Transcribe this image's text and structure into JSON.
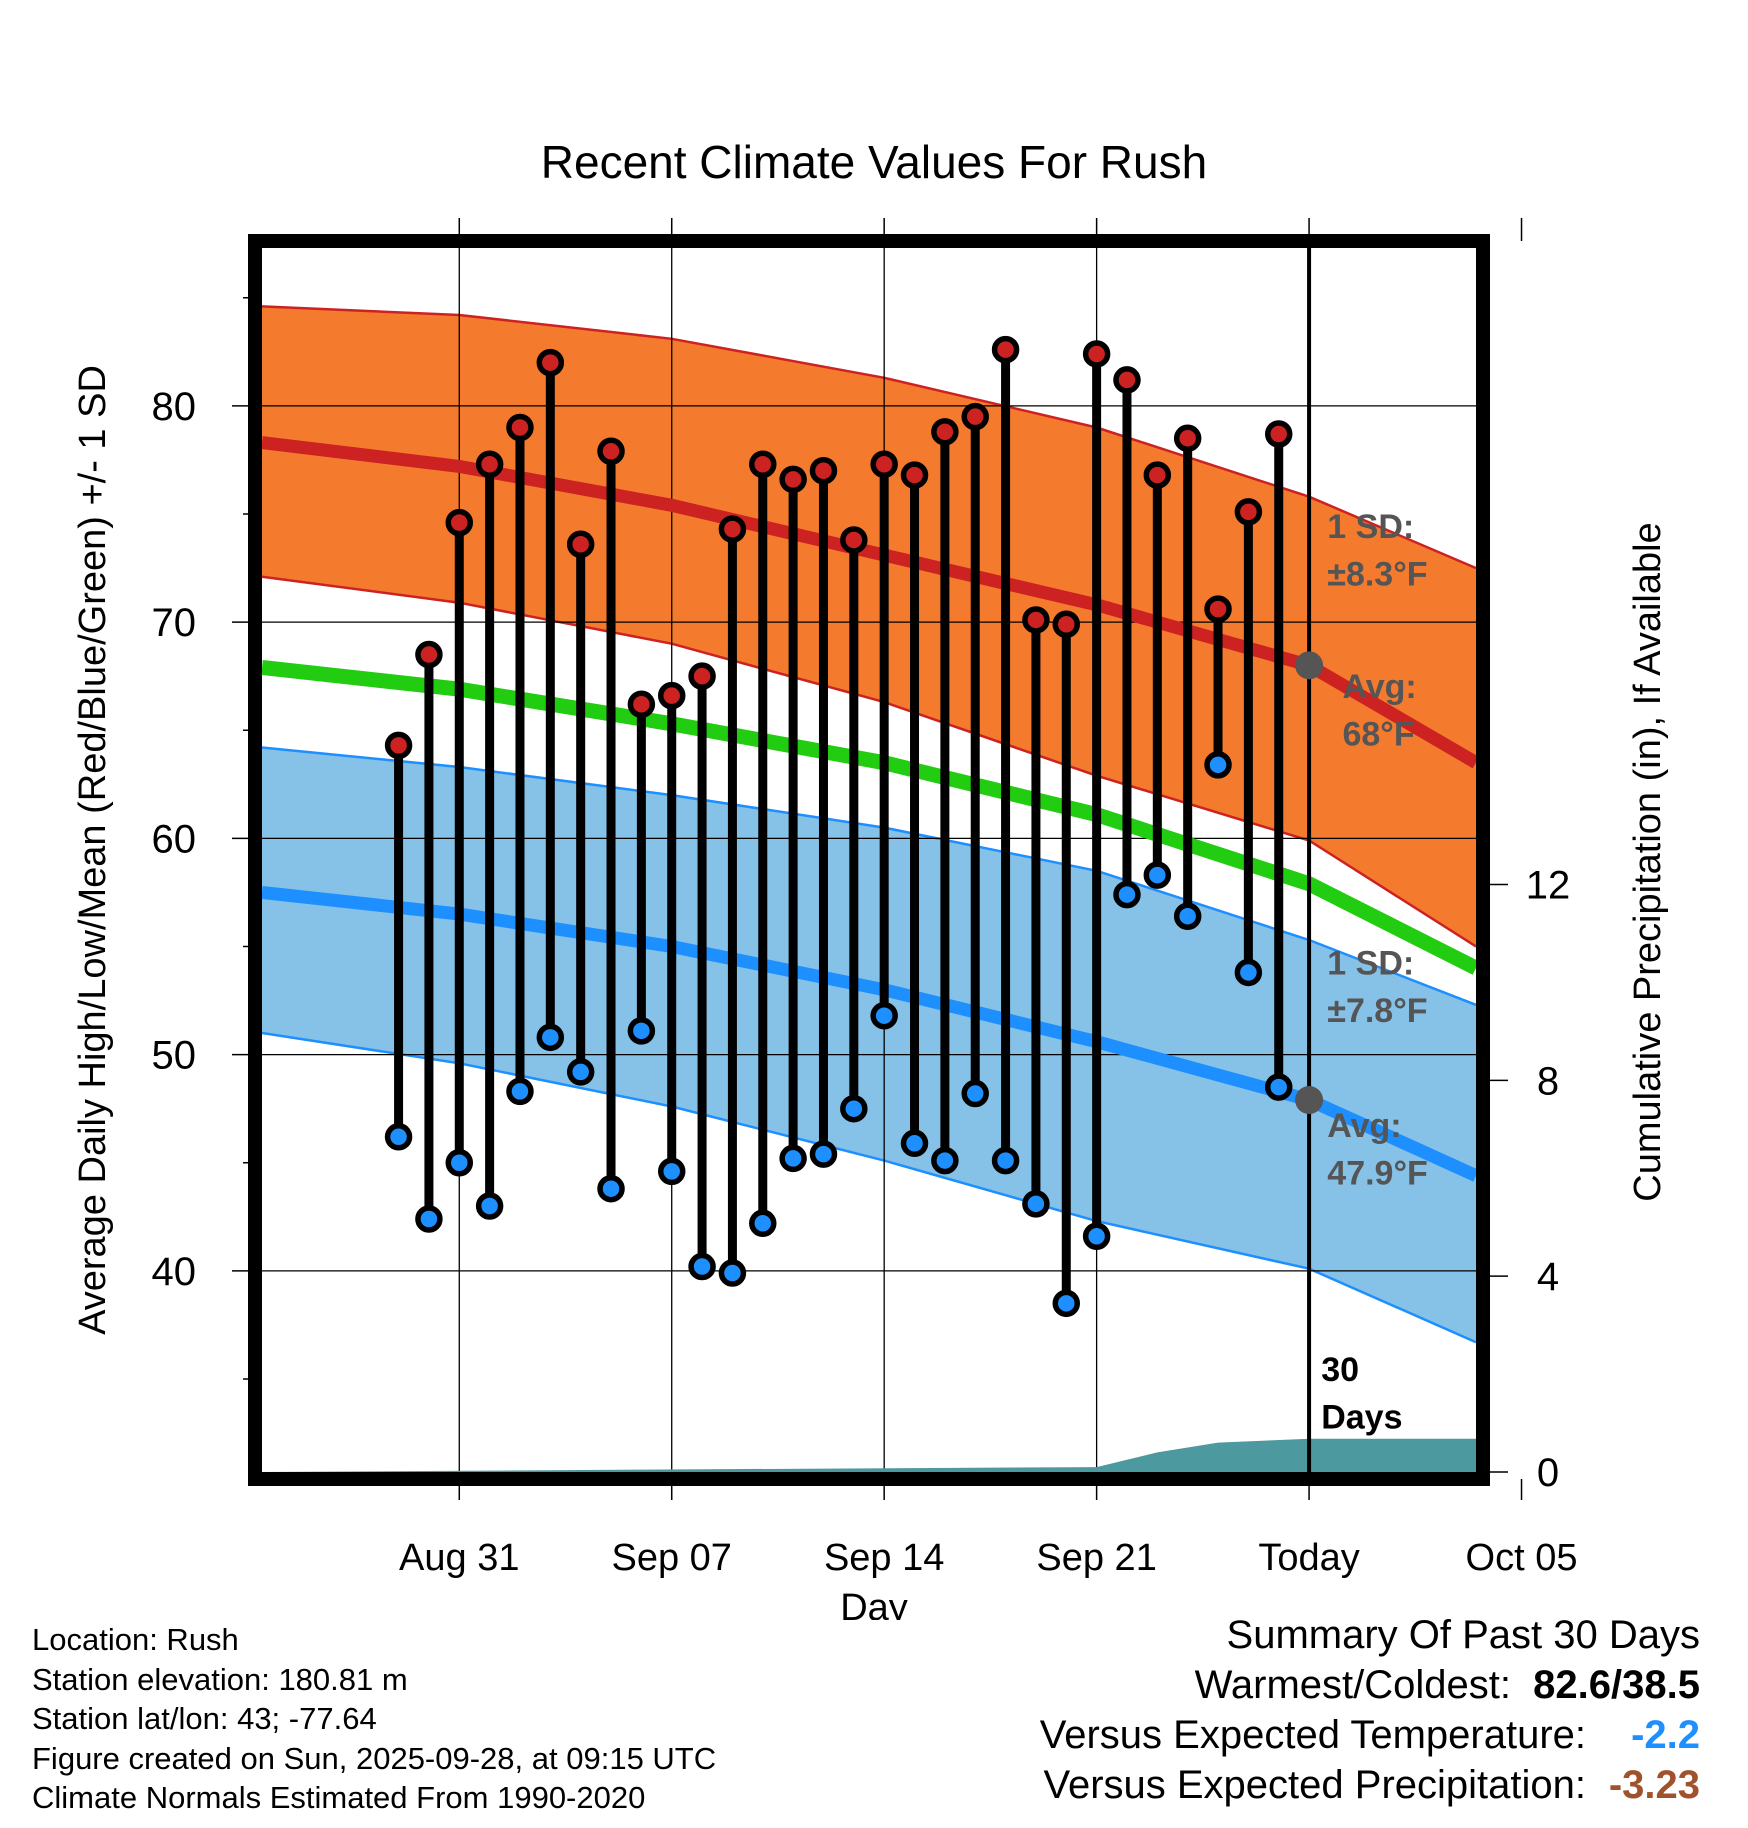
{
  "chart_data": {
    "type": "line",
    "title": "Recent Climate Values For Rush",
    "xlabel": "Day",
    "ylabel": "Average Daily High/Low/Mean (Red/Blue/Green) +/- 1 SD",
    "ylabel_right": "Cumulative Precipitation (in), If Available",
    "xlim_days": [
      -34.5,
      5.5
    ],
    "ylim": [
      30.7,
      87.3
    ],
    "ylim_right": [
      0,
      25
    ],
    "x_ticks": [
      {
        "day": -28,
        "label": "Aug 31"
      },
      {
        "day": -21,
        "label": "Sep 07"
      },
      {
        "day": -14,
        "label": "Sep 14"
      },
      {
        "day": -7,
        "label": "Sep 21"
      },
      {
        "day": 0,
        "label": "Today"
      },
      {
        "day": 7,
        "label": "Oct 05"
      }
    ],
    "y_ticks": [
      40,
      50,
      60,
      70,
      80
    ],
    "y_minor_ticks": [
      35,
      45,
      55,
      65,
      75,
      85
    ],
    "y_right_ticks": [
      0,
      4,
      8,
      12
    ],
    "normals": {
      "day": [
        -34.5,
        -28,
        -21,
        -14,
        -7,
        0,
        5.5
      ],
      "high_avg": [
        78.3,
        77.2,
        75.4,
        73.1,
        70.8,
        68.0,
        63.5
      ],
      "high_upper": [
        84.6,
        84.2,
        83.1,
        81.3,
        79.0,
        75.8,
        72.5
      ],
      "high_lower": [
        72.1,
        70.9,
        69.0,
        66.3,
        62.9,
        59.9,
        55.0
      ],
      "mean_avg": [
        67.9,
        66.9,
        65.3,
        63.5,
        61.1,
        57.9,
        54.0
      ],
      "low_avg": [
        57.5,
        56.5,
        55.0,
        53.0,
        50.6,
        47.9,
        44.4
      ],
      "low_upper": [
        64.2,
        63.3,
        62.0,
        60.5,
        58.5,
        55.3,
        52.3
      ],
      "low_lower": [
        51.0,
        49.6,
        47.6,
        45.1,
        42.3,
        40.1,
        36.7
      ]
    },
    "series": [
      {
        "name": "Daily High",
        "color": "#cc2222",
        "days": [
          -30,
          -29,
          -28,
          -27,
          -26,
          -25,
          -24,
          -23,
          -22,
          -21,
          -20,
          -19,
          -18,
          -17,
          -16,
          -15,
          -14,
          -13,
          -12,
          -11,
          -10,
          -9,
          -8,
          -7,
          -6,
          -5,
          -4,
          -3,
          -2,
          -1
        ],
        "values": [
          64.3,
          68.5,
          74.6,
          77.3,
          79.0,
          82.0,
          73.6,
          77.9,
          66.2,
          66.6,
          67.5,
          74.3,
          77.3,
          76.6,
          77.0,
          73.8,
          77.3,
          76.8,
          78.8,
          79.5,
          82.6,
          70.1,
          69.9,
          82.4,
          81.2,
          76.8,
          78.5,
          70.6,
          75.1,
          78.7
        ]
      },
      {
        "name": "Daily Low",
        "color": "#1e8fff",
        "days": [
          -30,
          -29,
          -28,
          -27,
          -26,
          -25,
          -24,
          -23,
          -22,
          -21,
          -20,
          -19,
          -18,
          -17,
          -16,
          -15,
          -14,
          -13,
          -12,
          -11,
          -10,
          -9,
          -8,
          -7,
          -6,
          -5,
          -4,
          -3,
          -2,
          -1
        ],
        "values": [
          46.2,
          42.4,
          45.0,
          43.0,
          48.3,
          50.8,
          49.2,
          43.8,
          51.1,
          44.6,
          40.2,
          39.9,
          42.2,
          45.2,
          45.4,
          47.5,
          51.8,
          45.9,
          45.1,
          48.2,
          45.1,
          43.1,
          38.5,
          41.6,
          57.4,
          58.3,
          56.4,
          63.4,
          53.8,
          48.5
        ]
      },
      {
        "name": "Cumulative Precipitation",
        "color": "#4c9aa0",
        "days": [
          -34.5,
          -22,
          -7,
          -5,
          -3,
          0,
          5.5
        ],
        "values": [
          0.0,
          0.05,
          0.1,
          0.4,
          0.6,
          0.68,
          0.68
        ]
      }
    ],
    "annotations": {
      "high_sd_label": "1 SD:",
      "high_sd_value": "±8.3°F",
      "high_avg_label": "Avg:",
      "high_avg_value": "68°F",
      "high_avg_marker": 68.0,
      "low_sd_label": "1 SD:",
      "low_sd_value": "±7.8°F",
      "low_avg_label": "Avg:",
      "low_avg_value": "47.9°F",
      "low_avg_marker": 47.9,
      "days_label_1": "30",
      "days_label_2": "Days"
    },
    "colors": {
      "high_band": "#f47a2e",
      "high_line": "#cc2222",
      "low_band": "#86c1e8",
      "low_line": "#1e8fff",
      "mean_line": "#22cc11",
      "precip": "#4c9aa0",
      "annotation": "#555555",
      "summary_temp": "#1e8fff",
      "summary_precip": "#a0522d"
    }
  },
  "footer": {
    "location": "Location: Rush",
    "elevation": "Station elevation: 180.81 m",
    "latlon": "Station lat/lon: 43; -77.64",
    "created": "Figure created on Sun, 2025-09-28, at 09:15 UTC",
    "normals": "Climate Normals Estimated From 1990-2020"
  },
  "summary": {
    "title": "Summary Of Past 30 Days",
    "warmest_label": "Warmest/Coldest:",
    "warmest_value": "82.6/38.5",
    "temp_label": "Versus Expected Temperature:",
    "temp_value": "-2.2",
    "precip_label": "Versus Expected Precipitation:",
    "precip_value": "-3.23"
  }
}
